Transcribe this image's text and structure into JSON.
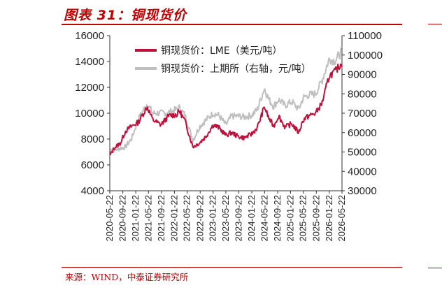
{
  "figure": {
    "title": "图表 31：铜现货价",
    "source": "来源：WIND，中泰证券研究所"
  },
  "colors": {
    "lme": "#c0103a",
    "shfe": "#bfbfbf",
    "accent": "#c00000"
  },
  "chart_data": {
    "type": "line",
    "legend_position": "top-left",
    "grid": false,
    "left_axis": {
      "min": 4000,
      "max": 16000,
      "ticks": [
        4000,
        6000,
        8000,
        10000,
        12000,
        14000,
        16000
      ]
    },
    "right_axis": {
      "min": 30000,
      "max": 110000,
      "ticks": [
        30000,
        40000,
        50000,
        60000,
        70000,
        80000,
        90000,
        100000,
        110000
      ]
    },
    "x_ticks": [
      "2020-05-22",
      "2020-09-22",
      "2021-01-22",
      "2021-05-22",
      "2021-09-22",
      "2022-01-22",
      "2022-05-22",
      "2022-09-22",
      "2023-01-22",
      "2023-05-22",
      "2023-09-22",
      "2024-01-22",
      "2024-05-22",
      "2024-09-22",
      "2025-01-22",
      "2025-05-22",
      "2025-09-22",
      "2026-01-22",
      "2026-05-22"
    ],
    "series": [
      {
        "name": "铜现货价：LME（美元/吨）",
        "axis": "left",
        "x": [
          "2020-05-22",
          "2020-07-01",
          "2020-09-01",
          "2020-10-15",
          "2020-12-15",
          "2021-02-15",
          "2021-05-10",
          "2021-07-01",
          "2021-09-15",
          "2021-12-01",
          "2022-02-15",
          "2022-03-08",
          "2022-05-01",
          "2022-07-15",
          "2022-09-15",
          "2022-11-15",
          "2023-01-22",
          "2023-03-15",
          "2023-05-22",
          "2023-07-15",
          "2023-09-15",
          "2023-11-15",
          "2024-01-22",
          "2024-03-15",
          "2024-05-20",
          "2024-07-01",
          "2024-08-15",
          "2024-10-01",
          "2024-12-01",
          "2025-02-01",
          "2025-04-08",
          "2025-05-22",
          "2025-07-15",
          "2025-09-15",
          "2025-11-15",
          "2026-01-22",
          "2026-03-15",
          "2026-05-22"
        ],
        "values": [
          6700,
          7300,
          7700,
          8600,
          9000,
          9300,
          10500,
          9500,
          9100,
          9800,
          9900,
          10200,
          9400,
          7400,
          7700,
          8200,
          9100,
          8900,
          8300,
          8500,
          8200,
          8100,
          8400,
          8900,
          10500,
          9600,
          9000,
          9800,
          8900,
          9200,
          8500,
          9500,
          9800,
          10000,
          10800,
          12900,
          13200,
          13900
        ]
      },
      {
        "name": "铜现货价：上期所（右轴，元/吨）",
        "axis": "right",
        "x": [
          "2020-05-22",
          "2020-07-01",
          "2020-09-01",
          "2020-10-15",
          "2020-12-15",
          "2021-02-15",
          "2021-05-10",
          "2021-07-01",
          "2021-09-15",
          "2021-12-01",
          "2022-02-15",
          "2022-03-08",
          "2022-05-01",
          "2022-07-15",
          "2022-09-15",
          "2022-11-15",
          "2023-01-22",
          "2023-03-15",
          "2023-05-22",
          "2023-07-15",
          "2023-09-15",
          "2023-11-15",
          "2024-01-22",
          "2024-03-15",
          "2024-05-20",
          "2024-07-01",
          "2024-08-15",
          "2024-10-01",
          "2024-12-01",
          "2025-02-01",
          "2025-04-08",
          "2025-05-22",
          "2025-07-15",
          "2025-09-15",
          "2025-11-15",
          "2026-01-22",
          "2026-03-15",
          "2026-05-22"
        ],
        "values": [
          52000,
          51000,
          52000,
          52500,
          57000,
          67000,
          75000,
          70000,
          70000,
          70500,
          72000,
          73000,
          69000,
          56000,
          63000,
          66500,
          70000,
          69000,
          64000,
          68500,
          68500,
          68000,
          69000,
          72000,
          83000,
          77000,
          73500,
          77000,
          74000,
          76000,
          72000,
          78000,
          79500,
          80000,
          87000,
          98000,
          97000,
          102000
        ]
      }
    ]
  }
}
